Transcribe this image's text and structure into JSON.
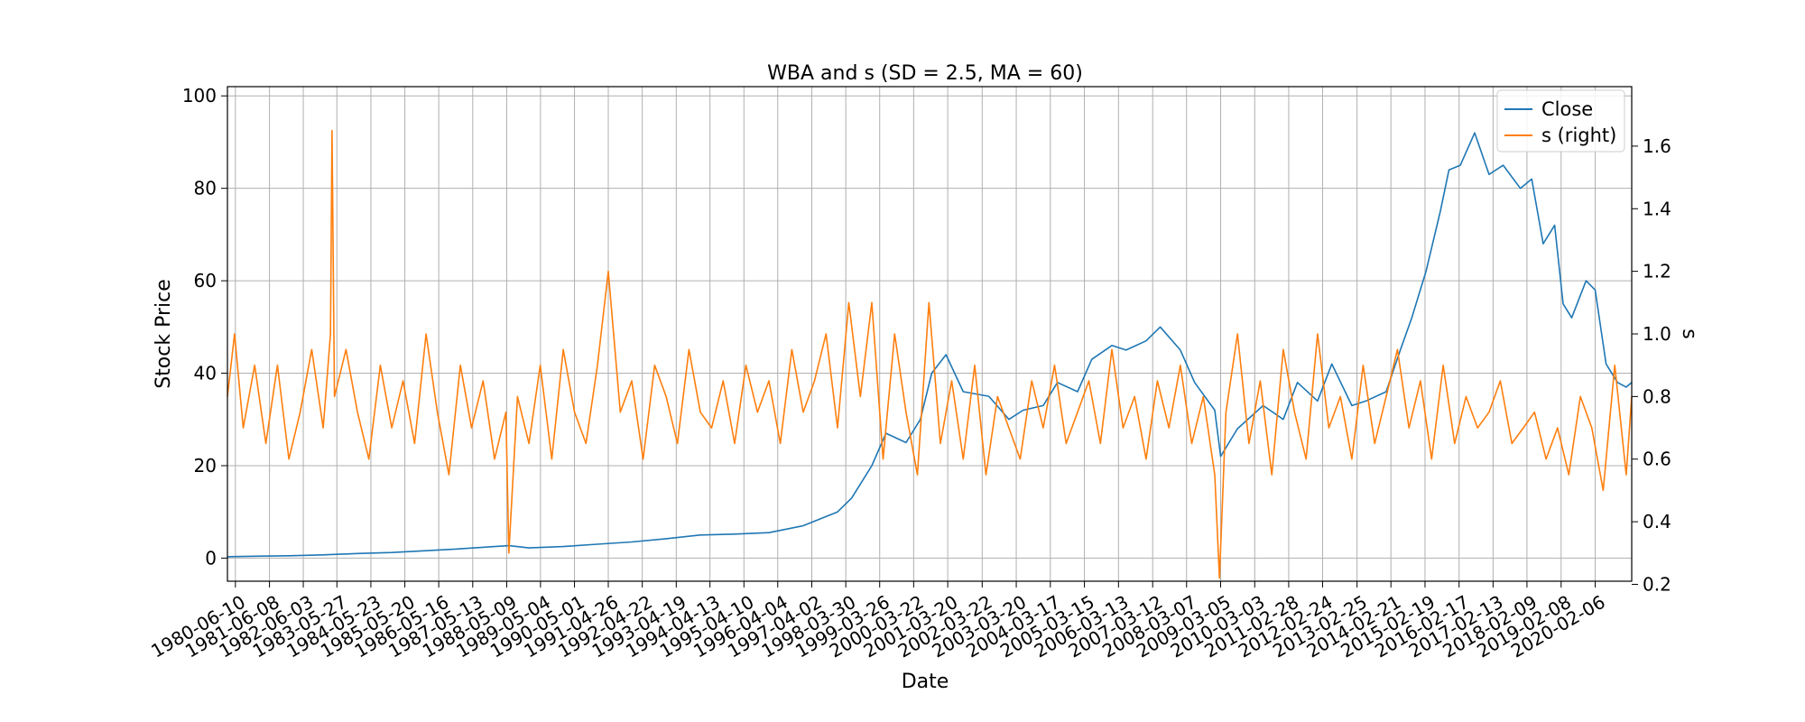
{
  "chart_data": {
    "type": "line",
    "title": "WBA and s (SD = 2.5, MA = 60)",
    "xlabel": "Date",
    "ylabel": "Stock Price",
    "y2label": "s",
    "ylim": [
      -5,
      102
    ],
    "y2lim": [
      0.21,
      1.79
    ],
    "yticks": [
      0,
      20,
      40,
      60,
      80,
      100
    ],
    "y2ticks": [
      0.2,
      0.4,
      0.6,
      0.8,
      1.0,
      1.2,
      1.4,
      1.6
    ],
    "xlim": [
      "1980-03-17",
      "2021-03-01"
    ],
    "grid": true,
    "legend_position": "top-right",
    "colors": {
      "close": "#1f77b4",
      "s": "#ff7f0e"
    },
    "xticks": [
      "1980-06-10",
      "1981-06-08",
      "1982-06-03",
      "1983-05-27",
      "1984-05-23",
      "1985-05-20",
      "1986-05-16",
      "1987-05-13",
      "1988-05-09",
      "1989-05-04",
      "1990-05-01",
      "1991-04-26",
      "1992-04-22",
      "1993-04-19",
      "1994-04-13",
      "1995-04-10",
      "1996-04-04",
      "1997-04-02",
      "1998-03-30",
      "1999-03-26",
      "2000-03-22",
      "2001-03-20",
      "2002-03-22",
      "2003-03-20",
      "2004-03-17",
      "2005-03-15",
      "2006-03-13",
      "2007-03-12",
      "2008-03-07",
      "2009-03-05",
      "2010-03-03",
      "2011-02-28",
      "2012-02-24",
      "2013-02-25",
      "2014-02-21",
      "2015-02-19",
      "2016-02-17",
      "2017-02-13",
      "2018-02-09",
      "2019-02-08",
      "2020-02-06"
    ],
    "series": [
      {
        "name": "Close",
        "axis": "left",
        "x": [
          "1980-03-17",
          "1981-01-01",
          "1982-01-01",
          "1983-01-01",
          "1984-01-01",
          "1985-01-01",
          "1986-01-01",
          "1987-01-01",
          "1988-01-01",
          "1988-06-01",
          "1989-01-01",
          "1990-01-01",
          "1991-01-01",
          "1992-01-01",
          "1993-01-01",
          "1994-01-01",
          "1995-01-01",
          "1996-01-01",
          "1997-01-01",
          "1998-01-01",
          "1998-06-01",
          "1999-01-01",
          "1999-06-01",
          "2000-01-01",
          "2000-06-01",
          "2000-10-01",
          "2001-03-01",
          "2001-09-01",
          "2002-06-01",
          "2003-01-01",
          "2003-06-01",
          "2004-01-01",
          "2004-06-01",
          "2005-01-01",
          "2005-06-01",
          "2006-01-01",
          "2006-06-01",
          "2007-01-01",
          "2007-06-01",
          "2008-01-01",
          "2008-06-01",
          "2009-01-01",
          "2009-03-05",
          "2009-09-01",
          "2010-06-01",
          "2011-01-01",
          "2011-06-01",
          "2012-01-01",
          "2012-06-01",
          "2013-01-01",
          "2013-06-01",
          "2014-01-01",
          "2014-06-01",
          "2014-10-01",
          "2015-03-01",
          "2015-08-01",
          "2015-11-01",
          "2016-03-01",
          "2016-08-01",
          "2017-01-01",
          "2017-06-01",
          "2017-12-01",
          "2018-04-01",
          "2018-08-01",
          "2018-12-01",
          "2019-03-01",
          "2019-06-01",
          "2019-11-01",
          "2020-02-06",
          "2020-06-01",
          "2020-10-01",
          "2021-01-01",
          "2021-03-01"
        ],
        "values": [
          0.3,
          0.4,
          0.5,
          0.7,
          1.0,
          1.2,
          1.6,
          2.0,
          2.5,
          2.7,
          2.2,
          2.5,
          3.0,
          3.5,
          4.2,
          5.0,
          5.2,
          5.5,
          7.0,
          10.0,
          13.0,
          20.0,
          27.0,
          25.0,
          30.0,
          40.0,
          44.0,
          36.0,
          35.0,
          30.0,
          32.0,
          33.0,
          38.0,
          36.0,
          43.0,
          46.0,
          45.0,
          47.0,
          50.0,
          45.0,
          38.0,
          32.0,
          22.0,
          28.0,
          33.0,
          30.0,
          38.0,
          34.0,
          42.0,
          33.0,
          34.0,
          36.0,
          45.0,
          52.0,
          62.0,
          75.0,
          84.0,
          85.0,
          92.0,
          83.0,
          85.0,
          80.0,
          82.0,
          68.0,
          72.0,
          55.0,
          52.0,
          60.0,
          58.0,
          42.0,
          38.0,
          37.0,
          38.0
        ]
      },
      {
        "name": "s (right)",
        "axis": "right",
        "x": [
          "1980-03-17",
          "1980-06-01",
          "1980-09-01",
          "1981-01-01",
          "1981-05-01",
          "1981-09-01",
          "1982-01-01",
          "1982-05-01",
          "1982-09-01",
          "1983-01-01",
          "1983-03-20",
          "1983-04-05",
          "1983-05-01",
          "1983-09-01",
          "1984-01-01",
          "1984-05-01",
          "1984-09-01",
          "1985-01-01",
          "1985-05-01",
          "1985-09-01",
          "1986-01-01",
          "1986-05-01",
          "1986-09-01",
          "1987-01-01",
          "1987-05-01",
          "1987-09-01",
          "1988-01-01",
          "1988-05-01",
          "1988-06-01",
          "1988-09-01",
          "1989-01-01",
          "1989-05-01",
          "1989-09-01",
          "1990-01-01",
          "1990-05-01",
          "1990-09-01",
          "1991-01-01",
          "1991-04-26",
          "1991-09-01",
          "1992-01-01",
          "1992-05-01",
          "1992-09-01",
          "1993-01-01",
          "1993-05-01",
          "1993-09-01",
          "1994-01-01",
          "1994-05-01",
          "1994-09-01",
          "1995-01-01",
          "1995-05-01",
          "1995-09-01",
          "1996-01-01",
          "1996-05-01",
          "1996-09-01",
          "1997-01-01",
          "1997-05-01",
          "1997-09-01",
          "1998-01-01",
          "1998-05-01",
          "1998-09-01",
          "1999-01-01",
          "1999-05-01",
          "1999-09-01",
          "2000-01-01",
          "2000-05-01",
          "2000-09-01",
          "2001-01-01",
          "2001-05-01",
          "2001-09-01",
          "2002-01-01",
          "2002-05-01",
          "2002-09-01",
          "2003-01-01",
          "2003-05-01",
          "2003-09-01",
          "2004-01-01",
          "2004-05-01",
          "2004-09-01",
          "2005-01-01",
          "2005-05-01",
          "2005-09-01",
          "2006-01-01",
          "2006-05-01",
          "2006-09-01",
          "2007-01-01",
          "2007-05-01",
          "2007-09-01",
          "2008-01-01",
          "2008-05-01",
          "2008-09-01",
          "2009-01-01",
          "2009-02-20",
          "2009-05-01",
          "2009-09-01",
          "2010-01-01",
          "2010-05-01",
          "2010-09-01",
          "2011-01-01",
          "2011-05-01",
          "2011-09-01",
          "2012-01-01",
          "2012-05-01",
          "2012-09-01",
          "2013-01-01",
          "2013-05-01",
          "2013-09-01",
          "2014-01-01",
          "2014-05-01",
          "2014-09-01",
          "2015-01-01",
          "2015-05-01",
          "2015-09-01",
          "2016-01-01",
          "2016-05-01",
          "2016-09-01",
          "2017-01-01",
          "2017-05-01",
          "2017-09-01",
          "2018-01-01",
          "2018-05-01",
          "2018-09-01",
          "2019-01-01",
          "2019-05-01",
          "2019-09-01",
          "2020-01-01",
          "2020-05-01",
          "2020-09-01",
          "2021-01-01",
          "2021-03-01"
        ],
        "values": [
          0.8,
          1.0,
          0.7,
          0.9,
          0.65,
          0.9,
          0.6,
          0.75,
          0.95,
          0.7,
          1.0,
          1.65,
          0.8,
          0.95,
          0.75,
          0.6,
          0.9,
          0.7,
          0.85,
          0.65,
          1.0,
          0.75,
          0.55,
          0.9,
          0.7,
          0.85,
          0.6,
          0.75,
          0.3,
          0.8,
          0.65,
          0.9,
          0.6,
          0.95,
          0.75,
          0.65,
          0.9,
          1.2,
          0.75,
          0.85,
          0.6,
          0.9,
          0.8,
          0.65,
          0.95,
          0.75,
          0.7,
          0.85,
          0.65,
          0.9,
          0.75,
          0.85,
          0.65,
          0.95,
          0.75,
          0.85,
          1.0,
          0.7,
          1.1,
          0.8,
          1.1,
          0.6,
          1.0,
          0.75,
          0.55,
          1.1,
          0.65,
          0.85,
          0.6,
          0.9,
          0.55,
          0.8,
          0.7,
          0.6,
          0.85,
          0.7,
          0.9,
          0.65,
          0.75,
          0.85,
          0.65,
          0.95,
          0.7,
          0.8,
          0.6,
          0.85,
          0.7,
          0.9,
          0.65,
          0.8,
          0.55,
          0.22,
          0.75,
          1.0,
          0.65,
          0.85,
          0.55,
          0.95,
          0.75,
          0.6,
          1.0,
          0.7,
          0.8,
          0.6,
          0.9,
          0.65,
          0.8,
          0.95,
          0.7,
          0.85,
          0.6,
          0.9,
          0.65,
          0.8,
          0.7,
          0.75,
          0.85,
          0.65,
          0.7,
          0.75,
          0.6,
          0.7,
          0.55,
          0.8,
          0.7,
          0.5,
          0.9,
          0.55,
          0.8
        ]
      }
    ]
  }
}
